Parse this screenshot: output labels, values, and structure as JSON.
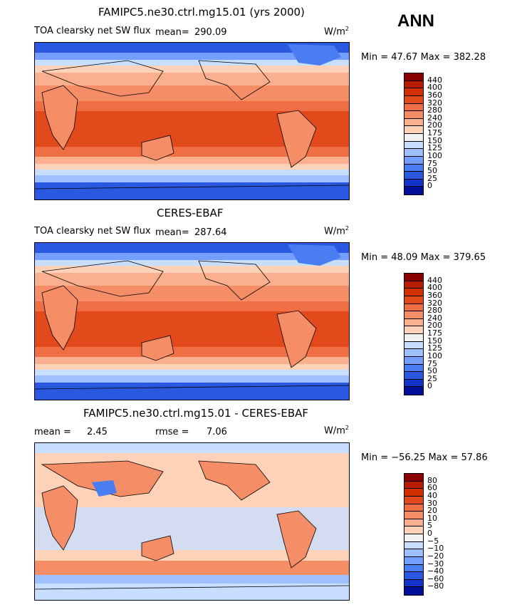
{
  "season": "ANN",
  "panels": [
    {
      "title": "FAMIPC5.ne30.ctrl.mg15.01 (yrs 2000)",
      "left_label": "TOA clearsky net SW flux",
      "mean_label": "mean=",
      "mean_value": "290.09",
      "units": "W/m",
      "units_sup": "2",
      "minmax": "Min =  47.67 Max = 382.28",
      "colorbar": {
        "colors": [
          "#8a0000",
          "#b71c00",
          "#d33000",
          "#e24a1c",
          "#ef6e44",
          "#f58d66",
          "#fab08e",
          "#fdd2b8",
          "#f2f2f2",
          "#c8deff",
          "#9ec0ff",
          "#749eff",
          "#4a7cf2",
          "#2a58e0",
          "#1234c8",
          "#000f9a"
        ],
        "labels": [
          "440",
          "400",
          "360",
          "320",
          "280",
          "240",
          "200",
          "175",
          "150",
          "125",
          "100",
          "75",
          "50",
          "25",
          "0"
        ]
      }
    },
    {
      "title": "CERES-EBAF",
      "left_label": "TOA clearsky net SW flux",
      "mean_label": "mean=",
      "mean_value": "287.64",
      "units": "W/m",
      "units_sup": "2",
      "minmax": "Min =  48.09 Max = 379.65",
      "colorbar": {
        "colors": [
          "#8a0000",
          "#b71c00",
          "#d33000",
          "#e24a1c",
          "#ef6e44",
          "#f58d66",
          "#fab08e",
          "#fdd2b8",
          "#f2f2f2",
          "#c8deff",
          "#9ec0ff",
          "#749eff",
          "#4a7cf2",
          "#2a58e0",
          "#1234c8",
          "#000f9a"
        ],
        "labels": [
          "440",
          "400",
          "360",
          "320",
          "280",
          "240",
          "200",
          "175",
          "150",
          "125",
          "100",
          "75",
          "50",
          "25",
          "0"
        ]
      }
    },
    {
      "title": "FAMIPC5.ne30.ctrl.mg15.01 - CERES-EBAF",
      "mean_label": "mean =",
      "mean_value": "2.45",
      "rmse_label": "rmse =",
      "rmse_value": "7.06",
      "units": "W/m",
      "units_sup": "2",
      "minmax": "Min = −56.25 Max =  57.86",
      "colorbar": {
        "colors": [
          "#8a0000",
          "#b71c00",
          "#d33000",
          "#e24a1c",
          "#ef6e44",
          "#f58d66",
          "#fab08e",
          "#fdd2b8",
          "#f2f2f2",
          "#c8deff",
          "#9ec0ff",
          "#749eff",
          "#4a7cf2",
          "#2a58e0",
          "#1234c8",
          "#000f9a"
        ],
        "labels": [
          "80",
          "60",
          "40",
          "30",
          "20",
          "10",
          "5",
          "0",
          "−5",
          "−10",
          "−20",
          "−30",
          "−40",
          "−60",
          "−80"
        ]
      }
    }
  ]
}
